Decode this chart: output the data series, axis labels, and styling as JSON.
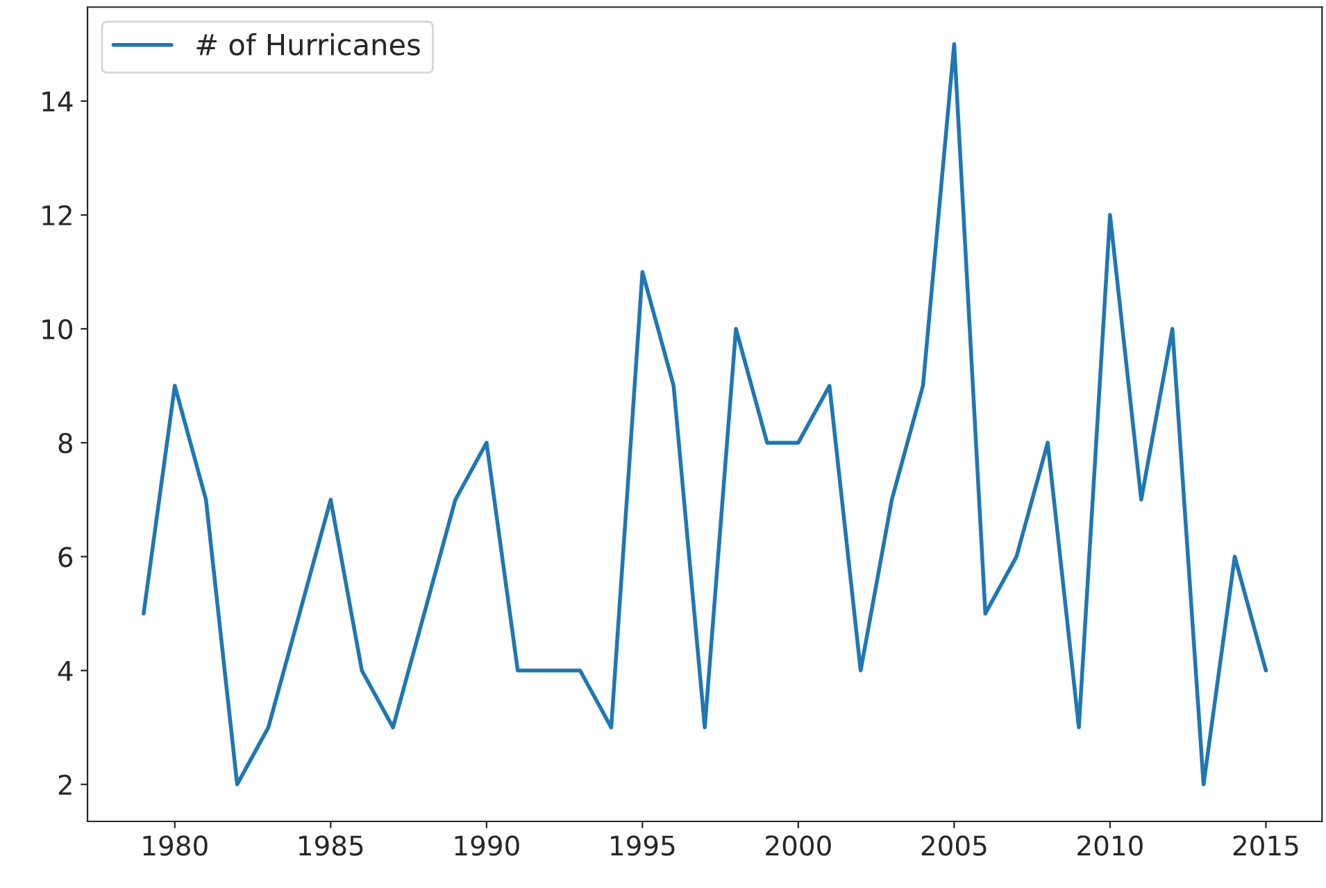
{
  "chart_data": {
    "type": "line",
    "x": [
      1979,
      1980,
      1981,
      1982,
      1983,
      1984,
      1985,
      1986,
      1987,
      1988,
      1989,
      1990,
      1991,
      1992,
      1993,
      1994,
      1995,
      1996,
      1997,
      1998,
      1999,
      2000,
      2001,
      2002,
      2003,
      2004,
      2005,
      2006,
      2007,
      2008,
      2009,
      2010,
      2011,
      2012,
      2013,
      2014,
      2015
    ],
    "series": [
      {
        "name": "# of Hurricanes",
        "color": "#1f77b4",
        "values": [
          5,
          9,
          7,
          2,
          3,
          5,
          7,
          4,
          3,
          5,
          7,
          8,
          4,
          4,
          4,
          3,
          11,
          9,
          3,
          10,
          8,
          8,
          9,
          4,
          7,
          9,
          15,
          5,
          6,
          8,
          3,
          12,
          7,
          10,
          2,
          6,
          4
        ]
      }
    ],
    "xlim": [
      1977.2,
      2016.8
    ],
    "xticks": [
      1980,
      1985,
      1990,
      1995,
      2000,
      2005,
      2010,
      2015
    ],
    "ylim": [
      1.35,
      15.65
    ],
    "yticks": [
      2,
      4,
      6,
      8,
      10,
      12,
      14
    ],
    "grid": false,
    "legend": "top left",
    "marker": "none",
    "line_style": "solid"
  }
}
